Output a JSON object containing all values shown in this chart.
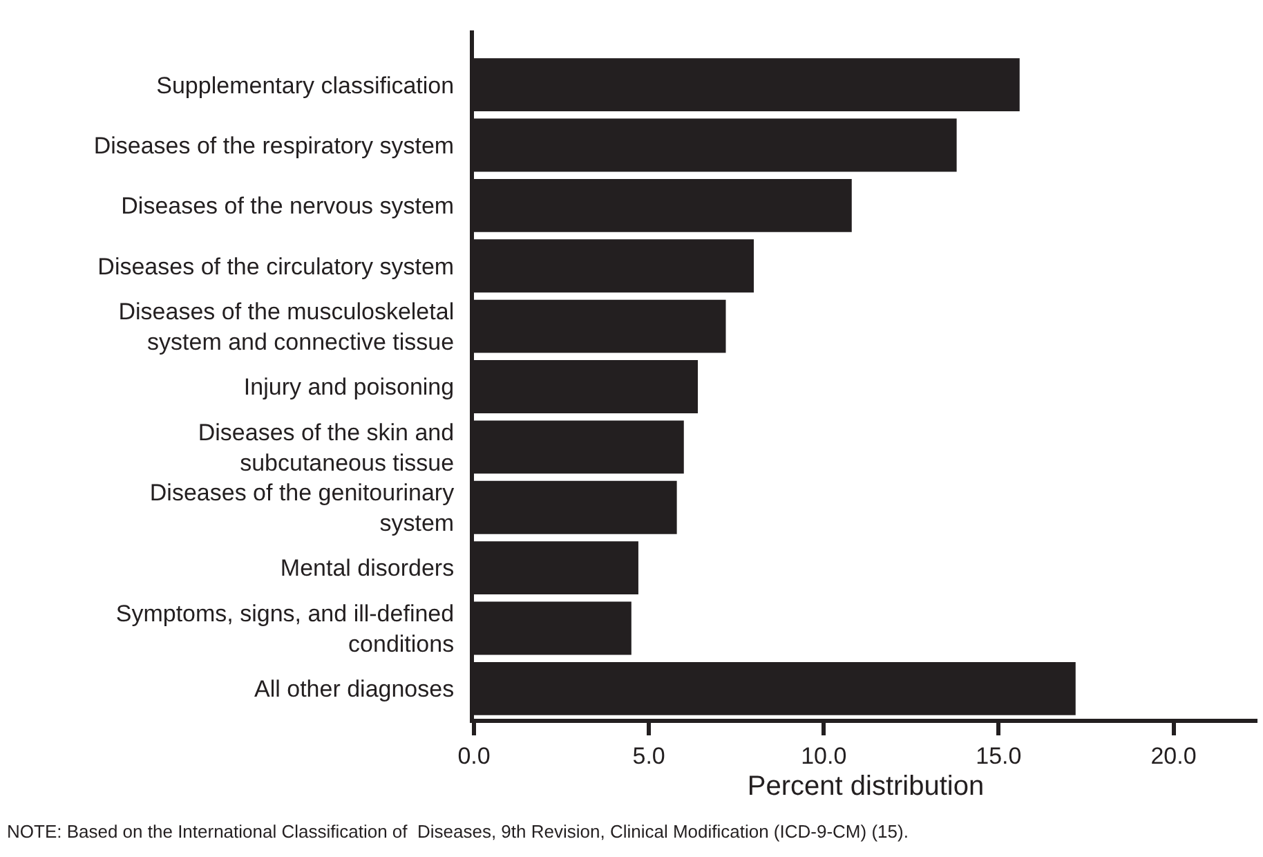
{
  "chart_data": {
    "type": "bar",
    "orientation": "horizontal",
    "categories": [
      "Supplementary classification",
      "Diseases of the respiratory system",
      "Diseases of the nervous system",
      "Diseases of the circulatory system",
      "Diseases of the musculoskeletal system and connective tissue",
      "Injury and poisoning",
      "Diseases of the skin and subcutaneous tissue",
      "Diseases of the genitourinary system",
      "Mental disorders",
      "Symptoms, signs, and ill-defined conditions",
      "All other diagnoses"
    ],
    "values": [
      15.6,
      13.8,
      10.8,
      8.0,
      7.2,
      6.4,
      6.0,
      5.8,
      4.7,
      4.5,
      17.2
    ],
    "color": "#231f20",
    "xlabel": "Percent distribution",
    "xlim": [
      0,
      22.4
    ],
    "xticks": [
      {
        "value": 0,
        "label": "0.0"
      },
      {
        "value": 5,
        "label": "5.0"
      },
      {
        "value": 10,
        "label": "10.0"
      },
      {
        "value": 15,
        "label": "15.0"
      },
      {
        "value": 20,
        "label": "20.0"
      }
    ],
    "grid": false,
    "annotations": [
      "NOTE: Based on the International Classification of  Diseases, 9th Revision, Clinical Modification (ICD-9-CM) (15)."
    ]
  }
}
